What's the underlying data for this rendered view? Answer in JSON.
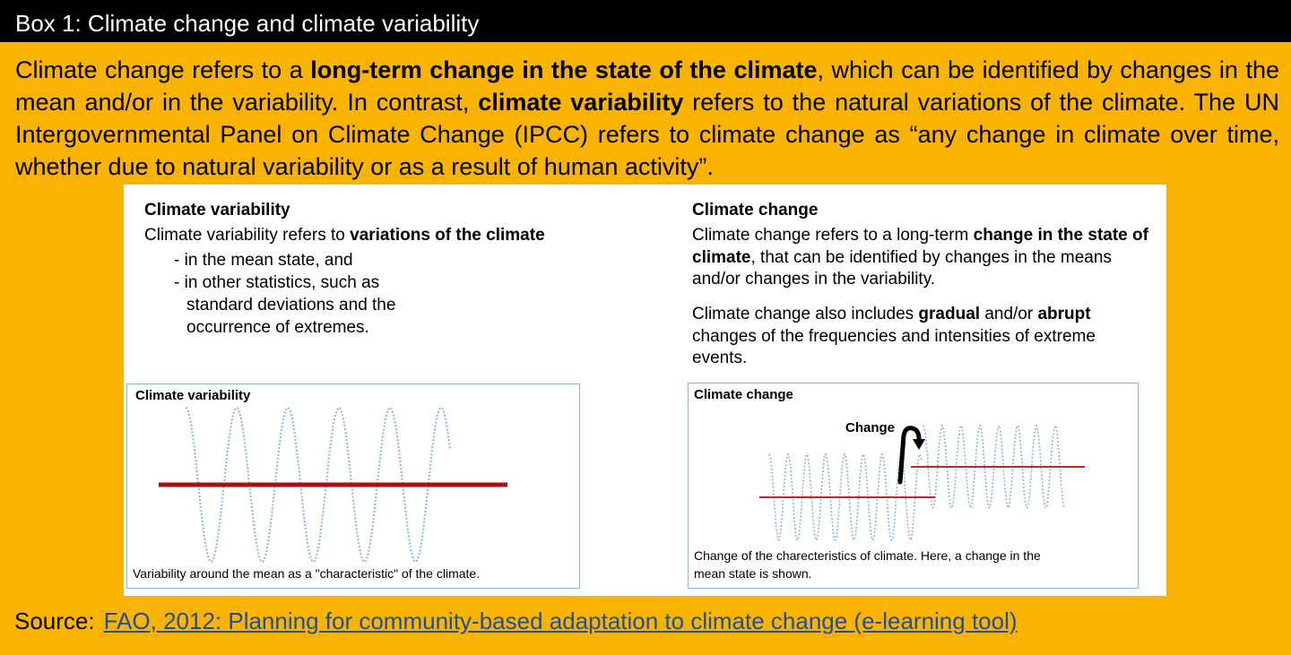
{
  "box_title": "Box 1: Climate change and climate variability",
  "intro": {
    "t1": "Climate change refers to a ",
    "b1": "long-term change in the state of the climate",
    "t2": ", which can be identified by changes in the mean and/or in the variability. In contrast, ",
    "b2": "climate variability",
    "t3": " refers to the natural variations of the climate. The UN Intergovernmental Panel on Climate Change (IPCC) refers to climate change as “any change in climate over time, whether due to natural variability or as a result of human activity”."
  },
  "variability": {
    "heading": "Climate variability",
    "def_t1": "Climate variability refers to ",
    "def_b1": "variations of the climate",
    "bullet1": "- in the mean state, and",
    "bullet2": "- in other statistics, such as",
    "bullet2_cont1": "standard deviations and the",
    "bullet2_cont2": "occurrence of extremes.",
    "figure_title": "Climate variability",
    "figure_caption": "Variability around the mean as a \"characteristic\" of the climate."
  },
  "change": {
    "heading": "Climate change",
    "def_t1": "Climate change refers to a long-term ",
    "def_b1": "change in the state of climate",
    "def_t2": ", that can be identified by changes in the means and/or changes in the variability.",
    "p2_t1": "Climate change also includes ",
    "p2_b1": "gradual",
    "p2_t2": " and/or ",
    "p2_b2": "abrupt",
    "p2_t3": " changes of the frequencies and intensities of extreme events.",
    "figure_title": "Climate change",
    "change_label": "Change",
    "figure_caption_1": "Change of the charecteristics of climate. Here, a change in the",
    "figure_caption_2": "mean state is shown."
  },
  "source": {
    "label": "Source:",
    "link": "FAO, 2012: Planning for community-based adaptation to climate change (e-learning tool)"
  },
  "colors": {
    "background": "#F9B300",
    "title_bar": "#000000",
    "mean_line_variability": "#A31515",
    "mean_line_change": "#C0262D",
    "wave": "#8BB3DD",
    "figure_border": "#8FB0E8",
    "link": "#1F4E9C"
  }
}
